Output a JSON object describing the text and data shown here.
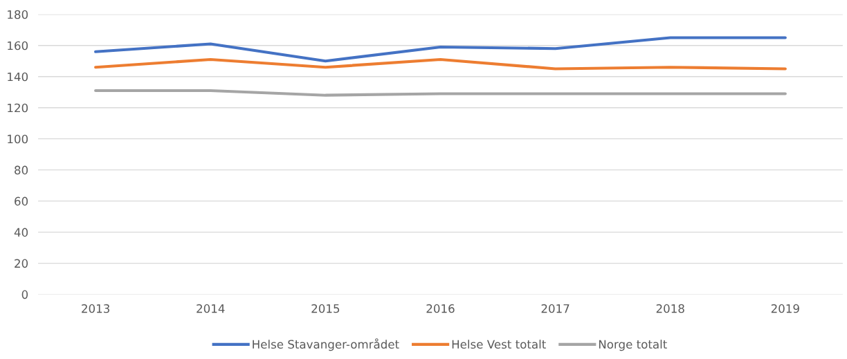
{
  "chart_data": {
    "type": "line",
    "categories": [
      "2013",
      "2014",
      "2015",
      "2016",
      "2017",
      "2018",
      "2019"
    ],
    "series": [
      {
        "name": "Helse Stavanger-området",
        "color": "#4472c4",
        "values": [
          156,
          161,
          150,
          159,
          158,
          165,
          165
        ]
      },
      {
        "name": "Helse Vest totalt",
        "color": "#ed7d31",
        "values": [
          146,
          151,
          146,
          151,
          145,
          146,
          145
        ]
      },
      {
        "name": "Norge totalt",
        "color": "#a5a5a5",
        "values": [
          131,
          131,
          128,
          129,
          129,
          129,
          129
        ]
      }
    ],
    "ylim": [
      0,
      180
    ],
    "yticks": [
      0,
      20,
      40,
      60,
      80,
      100,
      120,
      140,
      160,
      180
    ],
    "grid": "y",
    "legend": "bottom",
    "marker": "none",
    "line_style": "solid"
  }
}
